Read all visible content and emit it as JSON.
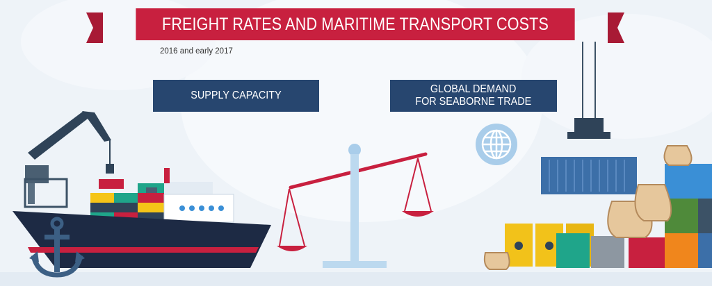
{
  "header": {
    "title": "FREIGHT RATES AND MARITIME TRANSPORT COSTS",
    "subtitle": "2016 and early 2017"
  },
  "labels": {
    "supply": "SUPPLY CAPACITY",
    "demand_line1": "GLOBAL DEMAND",
    "demand_line2": "FOR SEABORNE TRADE"
  },
  "colors": {
    "banner": "#c8203f",
    "label_box": "#27466f",
    "background": "#eef3f8"
  },
  "icons": [
    "cargo-ship-icon",
    "anchor-icon",
    "balance-scale-icon",
    "globe-icon",
    "shipping-container-icon",
    "oil-barrel-icon",
    "cargo-sack-icon"
  ]
}
